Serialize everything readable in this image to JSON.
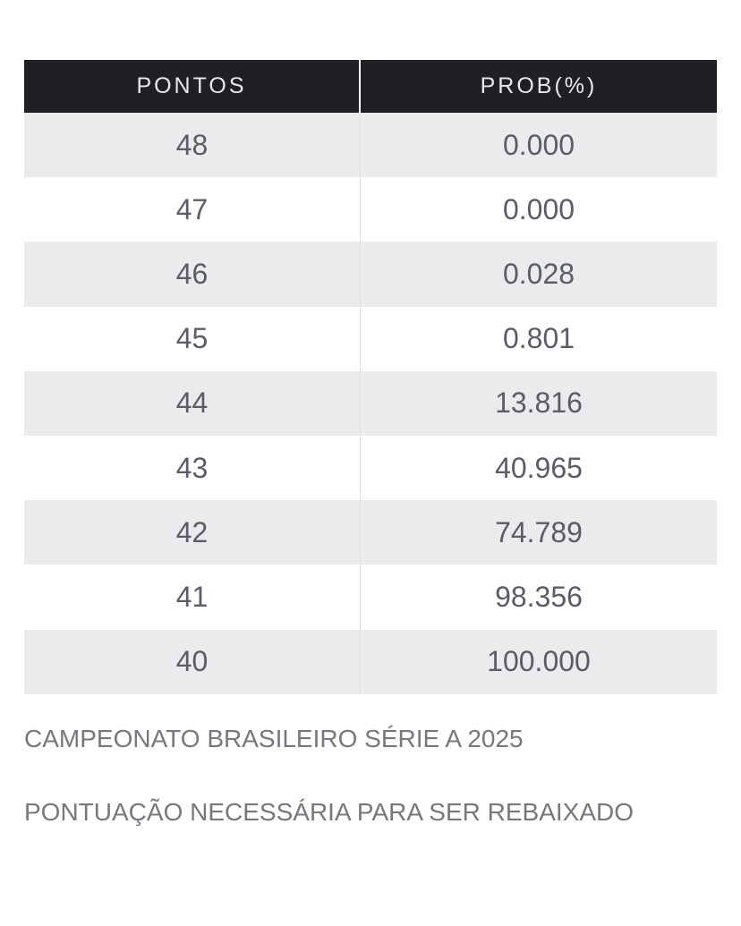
{
  "table": {
    "headers": [
      "PONTOS",
      "PROB(%)"
    ],
    "rows": [
      {
        "pontos": "48",
        "prob": "0.000"
      },
      {
        "pontos": "47",
        "prob": "0.000"
      },
      {
        "pontos": "46",
        "prob": "0.028"
      },
      {
        "pontos": "45",
        "prob": "0.801"
      },
      {
        "pontos": "44",
        "prob": "13.816"
      },
      {
        "pontos": "43",
        "prob": "40.965"
      },
      {
        "pontos": "42",
        "prob": "74.789"
      },
      {
        "pontos": "41",
        "prob": "98.356"
      },
      {
        "pontos": "40",
        "prob": "100.000"
      }
    ]
  },
  "captions": {
    "title": "CAMPEONATO BRASILEIRO SÉRIE A 2025",
    "subtitle": "PONTUAÇÃO NECESSÁRIA PARA SER REBAIXADO"
  },
  "colors": {
    "header_bg": "#1f2024",
    "row_alt_bg": "#ebebed",
    "cell_text": "#5a5c66",
    "caption_text": "#77787d"
  }
}
